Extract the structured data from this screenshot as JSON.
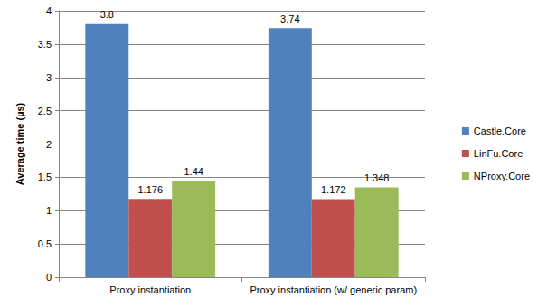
{
  "chart_data": {
    "type": "bar",
    "y_label": "Average time (µs)",
    "categories": [
      "Proxy instantiation",
      "Proxy instantiation (w/ generic param)"
    ],
    "series": [
      {
        "name": "Castle.Core",
        "color": "#4f81bd",
        "values": [
          3.8,
          3.74
        ]
      },
      {
        "name": "LinFu.Core",
        "color": "#c0504d",
        "values": [
          1.176,
          1.172
        ]
      },
      {
        "name": "NProxy.Core",
        "color": "#9bbb59",
        "values": [
          1.44,
          1.348
        ]
      }
    ],
    "ylim": [
      0,
      4
    ],
    "yticks": [
      0,
      0.5,
      1,
      1.5,
      2,
      2.5,
      3,
      3.5,
      4
    ],
    "grid": true,
    "legend": "right",
    "data_labels": true
  }
}
